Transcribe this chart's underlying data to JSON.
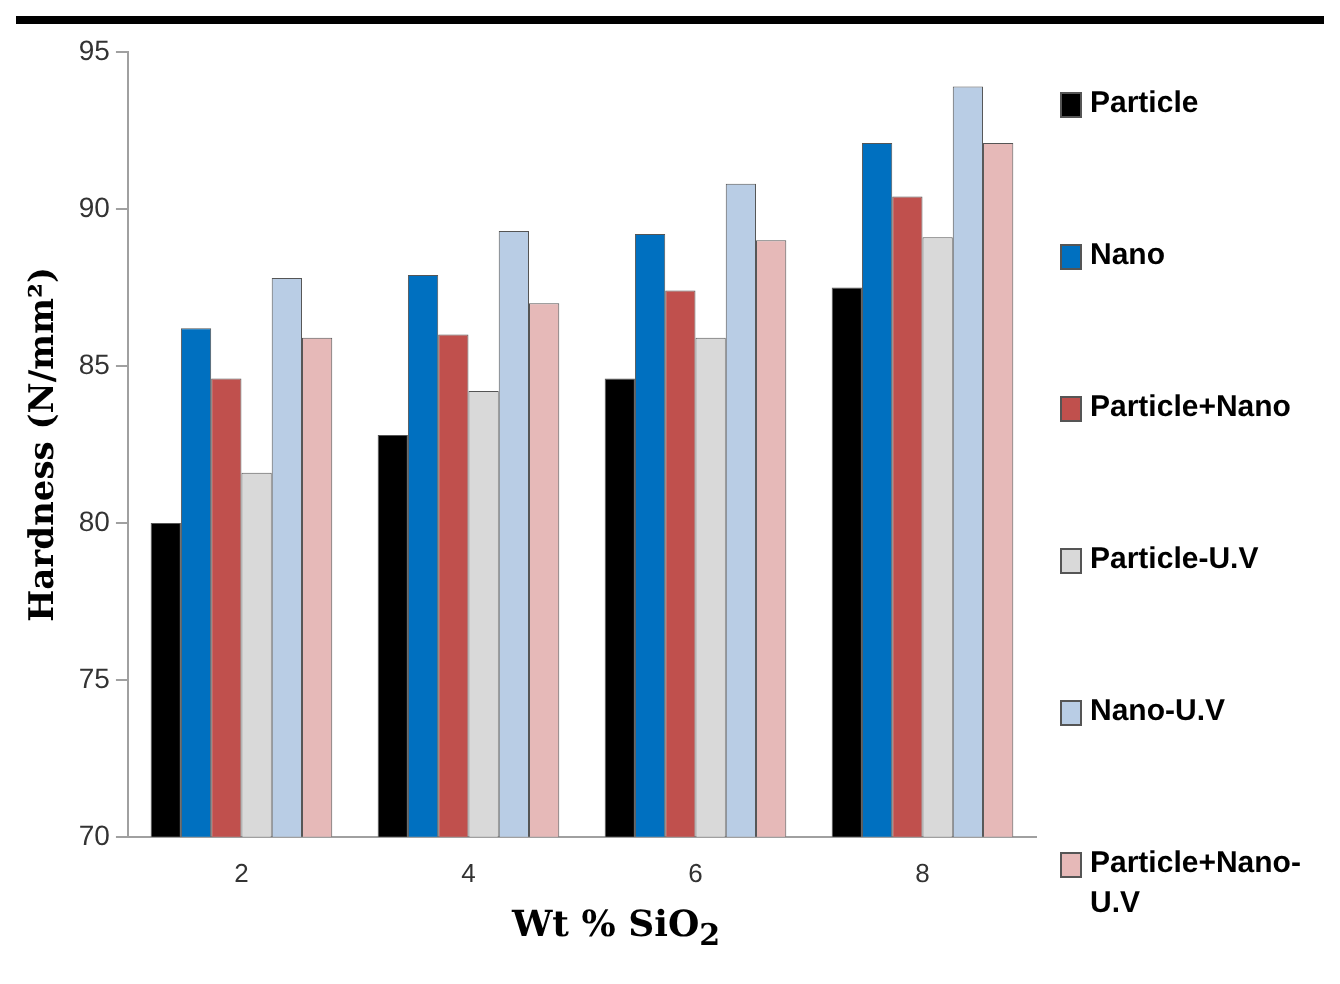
{
  "chart_data": {
    "type": "bar",
    "xlabel": "Wt % SiO$_{2}$",
    "ylabel": "Hardness (N/mm²)",
    "categories": [
      "2",
      "4",
      "6",
      "8"
    ],
    "series": [
      {
        "name": "Particle",
        "color": "#000000",
        "values": [
          80.0,
          82.8,
          84.6,
          87.5
        ]
      },
      {
        "name": "Nano",
        "color": "#0070c0",
        "values": [
          86.2,
          87.9,
          89.2,
          92.1
        ]
      },
      {
        "name": "Particle+Nano",
        "color": "#c0504d",
        "values": [
          84.6,
          86.0,
          87.4,
          90.4
        ]
      },
      {
        "name": "Particle-U.V",
        "color": "#d9d9d9",
        "values": [
          81.6,
          84.2,
          85.9,
          89.1
        ]
      },
      {
        "name": "Nano-U.V",
        "color": "#b9cde5",
        "values": [
          87.8,
          89.3,
          90.8,
          93.9
        ]
      },
      {
        "name": "Particle+Nano-U.V",
        "color": "#e6b9b8",
        "values": [
          85.9,
          87.0,
          89.0,
          92.1
        ]
      }
    ],
    "ylim": [
      70,
      95
    ],
    "yticks": [
      70,
      75,
      80,
      85,
      90,
      95
    ],
    "grid": false,
    "legend": "right"
  }
}
